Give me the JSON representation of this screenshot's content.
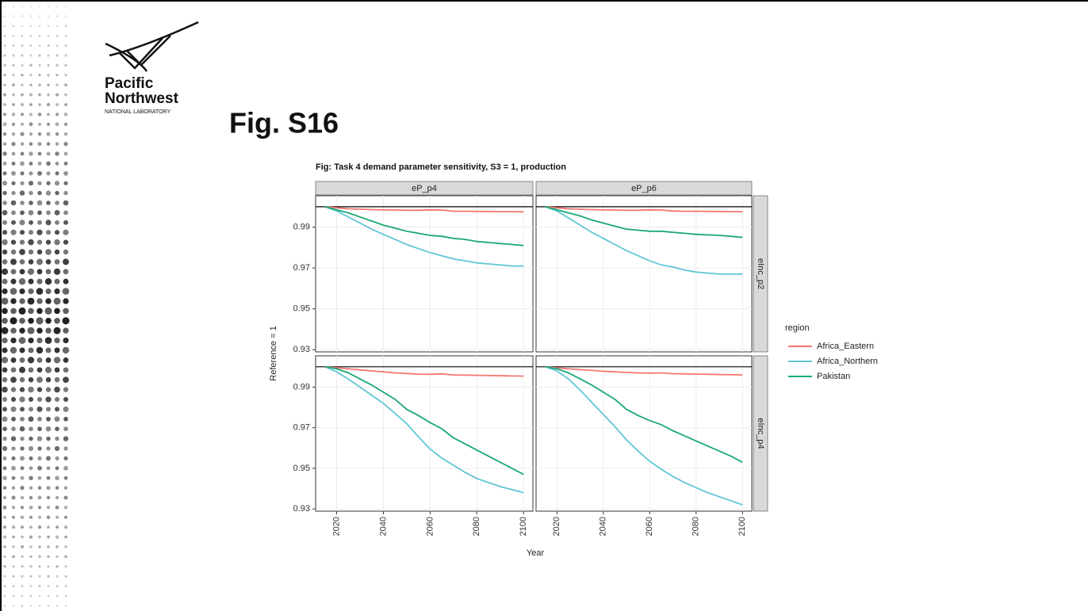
{
  "logo": {
    "line1": "Pacific",
    "line2": "Northwest",
    "line3": "NATIONAL LABORATORY"
  },
  "heading": "Fig. S16",
  "chart_data": {
    "type": "line",
    "title": "Fig: Task 4 demand parameter sensitivity, S3 = 1, production",
    "x_label": "Year",
    "y_label": "Reference = 1",
    "legend_title": "region",
    "legend_position": "right",
    "col_facets": [
      "eP_p4",
      "eP_p6"
    ],
    "row_facets": [
      "eInc_p2",
      "eInc_p4"
    ],
    "hline": 1,
    "x": [
      2015,
      2020,
      2025,
      2030,
      2035,
      2040,
      2045,
      2050,
      2055,
      2060,
      2065,
      2070,
      2075,
      2080,
      2085,
      2090,
      2095,
      2100
    ],
    "xlim": [
      2011,
      2104
    ],
    "xticks": [
      2020,
      2040,
      2060,
      2080,
      2100
    ],
    "ylim": [
      0.9289,
      1.0054
    ],
    "yticks": [
      0.93,
      0.95,
      0.97,
      0.99
    ],
    "grid": true,
    "series": [
      {
        "name": "Africa_Eastern",
        "color": "#f8766d",
        "values": [
          [
            1,
            0.9995,
            0.999,
            0.9988,
            0.9986,
            0.9985,
            0.9984,
            0.9983,
            0.9983,
            0.9985,
            0.9984,
            0.9978,
            0.9978,
            0.9977,
            0.9977,
            0.9976,
            0.9976,
            0.9975
          ],
          [
            1,
            0.9995,
            0.999,
            0.9988,
            0.9986,
            0.9985,
            0.9984,
            0.9983,
            0.9983,
            0.9985,
            0.9984,
            0.9979,
            0.9978,
            0.9978,
            0.9977,
            0.9977,
            0.9976,
            0.9976
          ],
          [
            1,
            0.9995,
            0.999,
            0.9985,
            0.998,
            0.9975,
            0.997,
            0.9967,
            0.9964,
            0.9963,
            0.9965,
            0.996,
            0.9959,
            0.9958,
            0.9957,
            0.9956,
            0.9955,
            0.9954
          ],
          [
            1,
            0.9995,
            0.999,
            0.9986,
            0.9982,
            0.9978,
            0.9975,
            0.9972,
            0.997,
            0.9969,
            0.997,
            0.9966,
            0.9965,
            0.9964,
            0.9963,
            0.9962,
            0.9961,
            0.996
          ]
        ]
      },
      {
        "name": "Africa_Northern",
        "color": "#61c6d5",
        "values": [
          [
            1,
            0.998,
            0.995,
            0.992,
            0.989,
            0.9865,
            0.984,
            0.9815,
            0.9795,
            0.9775,
            0.976,
            0.9745,
            0.9735,
            0.9725,
            0.972,
            0.9715,
            0.971,
            0.971
          ],
          [
            1,
            0.998,
            0.9945,
            0.991,
            0.9875,
            0.9845,
            0.9815,
            0.9785,
            0.976,
            0.9735,
            0.9715,
            0.9705,
            0.969,
            0.968,
            0.9675,
            0.967,
            0.967,
            0.967
          ],
          [
            1,
            0.9975,
            0.994,
            0.99,
            0.986,
            0.982,
            0.977,
            0.972,
            0.9655,
            0.9595,
            0.955,
            0.9515,
            0.948,
            0.945,
            0.943,
            0.941,
            0.9395,
            0.938
          ],
          [
            1,
            0.998,
            0.994,
            0.9885,
            0.9825,
            0.9765,
            0.9705,
            0.964,
            0.9585,
            0.9535,
            0.9495,
            0.946,
            0.943,
            0.9405,
            0.938,
            0.936,
            0.934,
            0.932
          ]
        ]
      },
      {
        "name": "Pakistan",
        "color": "#1aa874",
        "values": [
          [
            1,
            0.9985,
            0.997,
            0.995,
            0.993,
            0.991,
            0.9895,
            0.988,
            0.987,
            0.986,
            0.9855,
            0.9845,
            0.984,
            0.983,
            0.9825,
            0.982,
            0.9815,
            0.981
          ],
          [
            1,
            0.9985,
            0.997,
            0.9955,
            0.9935,
            0.992,
            0.9905,
            0.989,
            0.9885,
            0.988,
            0.988,
            0.9875,
            0.987,
            0.9865,
            0.9862,
            0.986,
            0.9855,
            0.985
          ],
          [
            1,
            0.999,
            0.997,
            0.994,
            0.991,
            0.9875,
            0.984,
            0.979,
            0.976,
            0.9725,
            0.9695,
            0.965,
            0.962,
            0.959,
            0.956,
            0.953,
            0.95,
            0.947
          ],
          [
            1,
            0.999,
            0.997,
            0.994,
            0.991,
            0.9875,
            0.984,
            0.979,
            0.976,
            0.9735,
            0.9715,
            0.9685,
            0.966,
            0.9635,
            0.961,
            0.9585,
            0.956,
            0.953
          ]
        ]
      }
    ]
  }
}
